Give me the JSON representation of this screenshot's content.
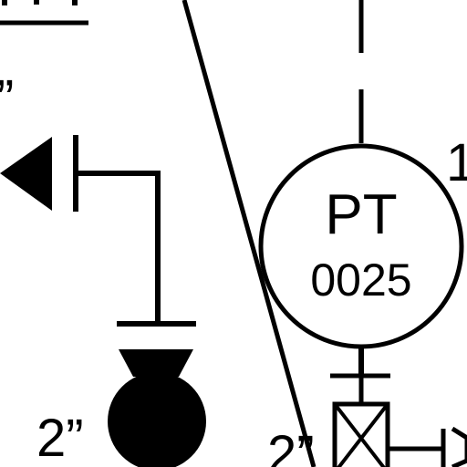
{
  "instrument": {
    "type_code": "PT",
    "tag_number": "0025",
    "callout_fragment": "1"
  },
  "line_sizes": {
    "top_left_fragment": "”",
    "pump_size": "2”",
    "valve_size": "2”"
  },
  "colors": {
    "line": "#000000",
    "background": "#ffffff"
  }
}
